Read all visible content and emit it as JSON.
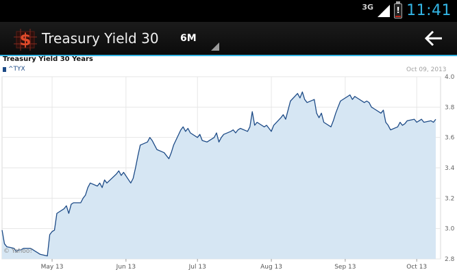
{
  "status_bar": {
    "network": "3G",
    "time": "11:41",
    "icons": [
      "signal-icon",
      "battery-alert-icon"
    ],
    "battery_level": 0.1,
    "battery_color": "#c0281a",
    "clock_color": "#33b5e5"
  },
  "action_bar": {
    "app_icon": "dollar-logo-icon",
    "title": "Treasury Yield 30",
    "range": "6M",
    "back_icon": "back-arrow-icon",
    "accent_color": "#33b5e5"
  },
  "chart_panel": {
    "credit": "© Yahoo!"
  },
  "chart_data": {
    "type": "area",
    "title": "Treasury Yield 30 Years",
    "legend": [
      "^TYX"
    ],
    "date": "Oct 09, 2013",
    "series": [
      {
        "name": "^TYX",
        "color": "#1c4a86",
        "fill": "#d6e6f3",
        "x": [
          "2013-04-10",
          "2013-04-11",
          "2013-04-12",
          "2013-04-15",
          "2013-04-16",
          "2013-04-17",
          "2013-04-18",
          "2013-04-19",
          "2013-04-22",
          "2013-04-23",
          "2013-04-24",
          "2013-04-25",
          "2013-04-26",
          "2013-04-29",
          "2013-04-30",
          "2013-05-01",
          "2013-05-02",
          "2013-05-03",
          "2013-05-06",
          "2013-05-07",
          "2013-05-08",
          "2013-05-09",
          "2013-05-10",
          "2013-05-13",
          "2013-05-14",
          "2013-05-15",
          "2013-05-16",
          "2013-05-17",
          "2013-05-20",
          "2013-05-21",
          "2013-05-22",
          "2013-05-23",
          "2013-05-24",
          "2013-05-28",
          "2013-05-29",
          "2013-05-30",
          "2013-05-31",
          "2013-06-03",
          "2013-06-04",
          "2013-06-05",
          "2013-06-06",
          "2013-06-07",
          "2013-06-10",
          "2013-06-11",
          "2013-06-12",
          "2013-06-13",
          "2013-06-14",
          "2013-06-17",
          "2013-06-18",
          "2013-06-19",
          "2013-06-20",
          "2013-06-21",
          "2013-06-24",
          "2013-06-25",
          "2013-06-26",
          "2013-06-27",
          "2013-06-28",
          "2013-07-01",
          "2013-07-02",
          "2013-07-03",
          "2013-07-05",
          "2013-07-08",
          "2013-07-09",
          "2013-07-10",
          "2013-07-11",
          "2013-07-12",
          "2013-07-15",
          "2013-07-16",
          "2013-07-17",
          "2013-07-18",
          "2013-07-19",
          "2013-07-22",
          "2013-07-23",
          "2013-07-24",
          "2013-07-25",
          "2013-07-26",
          "2013-07-29",
          "2013-07-30",
          "2013-07-31",
          "2013-08-01",
          "2013-08-02",
          "2013-08-05",
          "2013-08-06",
          "2013-08-07",
          "2013-08-08",
          "2013-08-09",
          "2013-08-12",
          "2013-08-13",
          "2013-08-14",
          "2013-08-15",
          "2013-08-16",
          "2013-08-19",
          "2013-08-20",
          "2013-08-21",
          "2013-08-22",
          "2013-08-23",
          "2013-08-26",
          "2013-08-27",
          "2013-08-28",
          "2013-08-29",
          "2013-08-30",
          "2013-09-03",
          "2013-09-04",
          "2013-09-05",
          "2013-09-06",
          "2013-09-09",
          "2013-09-10",
          "2013-09-11",
          "2013-09-12",
          "2013-09-13",
          "2013-09-16",
          "2013-09-17",
          "2013-09-18",
          "2013-09-19",
          "2013-09-20",
          "2013-09-23",
          "2013-09-24",
          "2013-09-25",
          "2013-09-26",
          "2013-09-27",
          "2013-09-30",
          "2013-10-01",
          "2013-10-02",
          "2013-10-03",
          "2013-10-04",
          "2013-10-07",
          "2013-10-08",
          "2013-10-09"
        ],
        "values": [
          2.99,
          2.9,
          2.88,
          2.87,
          2.85,
          2.86,
          2.86,
          2.87,
          2.87,
          2.86,
          2.85,
          2.84,
          2.83,
          2.82,
          2.96,
          2.98,
          2.99,
          3.1,
          3.13,
          3.15,
          3.1,
          3.16,
          3.17,
          3.17,
          3.2,
          3.22,
          3.27,
          3.3,
          3.28,
          3.3,
          3.27,
          3.32,
          3.3,
          3.36,
          3.38,
          3.35,
          3.37,
          3.3,
          3.33,
          3.4,
          3.48,
          3.55,
          3.57,
          3.6,
          3.58,
          3.55,
          3.52,
          3.5,
          3.48,
          3.46,
          3.5,
          3.55,
          3.65,
          3.67,
          3.64,
          3.66,
          3.63,
          3.6,
          3.62,
          3.58,
          3.57,
          3.6,
          3.63,
          3.57,
          3.6,
          3.62,
          3.64,
          3.65,
          3.63,
          3.65,
          3.66,
          3.64,
          3.67,
          3.77,
          3.68,
          3.7,
          3.67,
          3.68,
          3.66,
          3.64,
          3.68,
          3.73,
          3.75,
          3.72,
          3.78,
          3.84,
          3.89,
          3.86,
          3.9,
          3.85,
          3.83,
          3.85,
          3.76,
          3.73,
          3.76,
          3.7,
          3.67,
          3.71,
          3.76,
          3.8,
          3.84,
          3.88,
          3.85,
          3.87,
          3.86,
          3.83,
          3.84,
          3.83,
          3.8,
          3.79,
          3.76,
          3.78,
          3.7,
          3.68,
          3.65,
          3.67,
          3.7,
          3.68,
          3.69,
          3.71,
          3.72,
          3.7,
          3.71,
          3.72,
          3.7,
          3.71,
          3.7,
          3.72
        ]
      }
    ],
    "x_ticks": [
      "May 13",
      "Jun 13",
      "Jul 13",
      "Aug 13",
      "Sep 13",
      "Oct 13"
    ],
    "x_tick_dates": [
      "2013-05-01",
      "2013-06-01",
      "2013-07-01",
      "2013-08-01",
      "2013-09-01",
      "2013-10-01"
    ],
    "x_range": [
      "2013-04-10",
      "2013-10-11"
    ],
    "y_ticks": [
      "2.8",
      "3.0",
      "3.2",
      "3.4",
      "3.6",
      "3.8",
      "4.0"
    ],
    "ylim": [
      2.8,
      4.0
    ],
    "y_axis_side": "right",
    "grid": true,
    "legend_placement": "top-left"
  }
}
